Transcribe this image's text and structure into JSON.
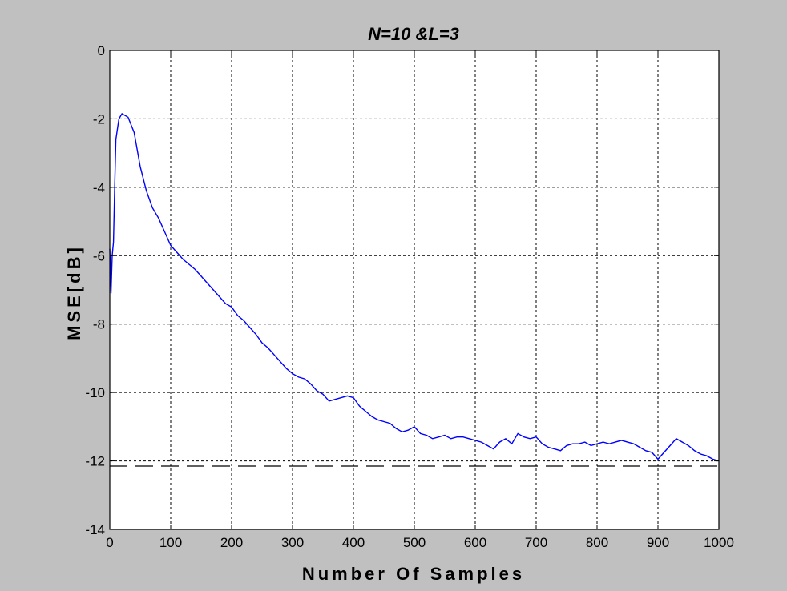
{
  "figure": {
    "background": "#c0c0c0",
    "axes_background": "#ffffff"
  },
  "chart_data": {
    "type": "line",
    "title": "N=10 &L=3",
    "xlabel": "Number Of Samples",
    "ylabel": "MSE[dB]",
    "xlim": [
      0,
      1000
    ],
    "ylim": [
      -14,
      0
    ],
    "xticks": [
      0,
      100,
      200,
      300,
      400,
      500,
      600,
      700,
      800,
      900,
      1000
    ],
    "yticks": [
      0,
      -2,
      -4,
      -6,
      -8,
      -10,
      -12,
      -14
    ],
    "grid": true,
    "grid_style": "dotted",
    "series": [
      {
        "color": "#0000ff",
        "style": "solid",
        "x": [
          0,
          2,
          4,
          6,
          8,
          10,
          15,
          20,
          30,
          40,
          50,
          60,
          70,
          80,
          90,
          100,
          110,
          120,
          130,
          140,
          150,
          160,
          170,
          180,
          190,
          200,
          210,
          220,
          230,
          240,
          250,
          260,
          270,
          280,
          290,
          300,
          310,
          320,
          330,
          340,
          350,
          360,
          370,
          380,
          390,
          400,
          410,
          420,
          430,
          440,
          450,
          460,
          470,
          480,
          490,
          500,
          510,
          520,
          530,
          540,
          550,
          560,
          570,
          580,
          590,
          600,
          610,
          620,
          630,
          640,
          650,
          660,
          670,
          680,
          690,
          700,
          710,
          720,
          730,
          740,
          750,
          760,
          770,
          780,
          790,
          800,
          810,
          820,
          830,
          840,
          850,
          860,
          870,
          880,
          890,
          900,
          910,
          920,
          930,
          940,
          950,
          960,
          970,
          980,
          990,
          1000
        ],
        "y": [
          -5.8,
          -7.1,
          -6.0,
          -5.6,
          -4.0,
          -2.6,
          -2.0,
          -1.85,
          -1.95,
          -2.4,
          -3.4,
          -4.1,
          -4.6,
          -4.9,
          -5.3,
          -5.7,
          -5.9,
          -6.1,
          -6.25,
          -6.4,
          -6.6,
          -6.8,
          -7.0,
          -7.2,
          -7.4,
          -7.5,
          -7.75,
          -7.9,
          -8.1,
          -8.3,
          -8.55,
          -8.7,
          -8.9,
          -9.1,
          -9.3,
          -9.45,
          -9.55,
          -9.6,
          -9.75,
          -9.95,
          -10.05,
          -10.25,
          -10.2,
          -10.15,
          -10.1,
          -10.15,
          -10.4,
          -10.55,
          -10.7,
          -10.8,
          -10.85,
          -10.9,
          -11.05,
          -11.15,
          -11.1,
          -11.0,
          -11.2,
          -11.25,
          -11.35,
          -11.3,
          -11.25,
          -11.35,
          -11.3,
          -11.3,
          -11.35,
          -11.4,
          -11.45,
          -11.55,
          -11.65,
          -11.45,
          -11.35,
          -11.5,
          -11.2,
          -11.3,
          -11.35,
          -11.3,
          -11.5,
          -11.6,
          -11.65,
          -11.7,
          -11.55,
          -11.5,
          -11.5,
          -11.45,
          -11.55,
          -11.5,
          -11.45,
          -11.5,
          -11.45,
          -11.4,
          -11.45,
          -11.5,
          -11.6,
          -11.7,
          -11.75,
          -11.95,
          -11.75,
          -11.55,
          -11.35,
          -11.45,
          -11.55,
          -11.7,
          -11.8,
          -11.85,
          -11.95,
          -12.0
        ]
      },
      {
        "color": "#000000",
        "style": "dashed",
        "x": [
          0,
          1000
        ],
        "y": [
          -12.15,
          -12.15
        ]
      }
    ]
  }
}
